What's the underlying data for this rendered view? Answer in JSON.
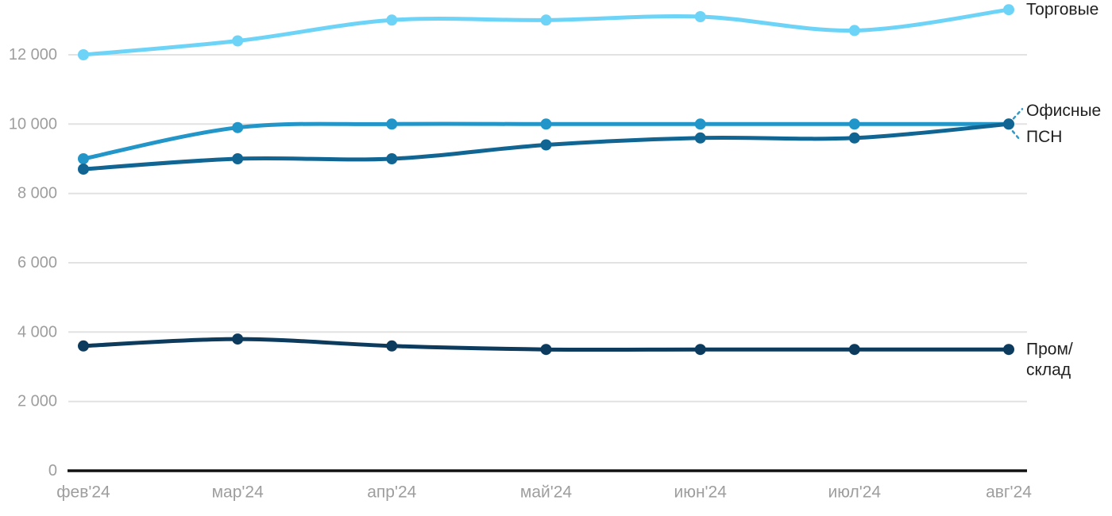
{
  "chart_data": {
    "type": "line",
    "title": "",
    "xlabel": "",
    "ylabel": "",
    "x": [
      "фев'24",
      "мар'24",
      "апр'24",
      "май'24",
      "июн'24",
      "июл'24",
      "авг'24"
    ],
    "series": [
      {
        "key": "torgovye",
        "name": "Торговые",
        "color": "#6ED4F7",
        "values": [
          12000,
          12400,
          13000,
          13000,
          13100,
          12700,
          13300
        ],
        "label_lines": [
          "Торговые"
        ],
        "label_dy": [
          0
        ],
        "leader": "none"
      },
      {
        "key": "ofisnye",
        "name": "Офисные",
        "color": "#2296C8",
        "values": [
          9000,
          9900,
          10000,
          10000,
          10000,
          10000,
          10000
        ],
        "label_lines": [
          "Офисные"
        ],
        "label_dy": [
          -17
        ],
        "leader": "up"
      },
      {
        "key": "psn",
        "name": "ПСН",
        "color": "#106593",
        "values": [
          8700,
          9000,
          9000,
          9400,
          9600,
          9600,
          10000
        ],
        "label_lines": [
          "ПСН"
        ],
        "label_dy": [
          16
        ],
        "leader": "down"
      },
      {
        "key": "prom-sklad",
        "name": "Пром/склад",
        "color": "#0C3B5E",
        "values": [
          3600,
          3800,
          3600,
          3500,
          3500,
          3500,
          3500
        ],
        "label_lines": [
          "Пром/",
          "склад"
        ],
        "label_dy": [
          0,
          26
        ],
        "leader": "none"
      }
    ],
    "y_ticks": [
      0,
      2000,
      4000,
      6000,
      8000,
      10000,
      12000
    ],
    "y_tick_labels": [
      "0",
      "2 000",
      "4 000",
      "6 000",
      "8 000",
      "10 000",
      "12 000"
    ],
    "ylim": [
      0,
      13500
    ],
    "grid": true,
    "legend_position": "right-inline",
    "colors": {
      "grid": "#e2e2e2",
      "axis": "#111111",
      "tick_text": "#9e9e9e",
      "label_text": "#212121",
      "leader": "#2E9ACB"
    }
  }
}
